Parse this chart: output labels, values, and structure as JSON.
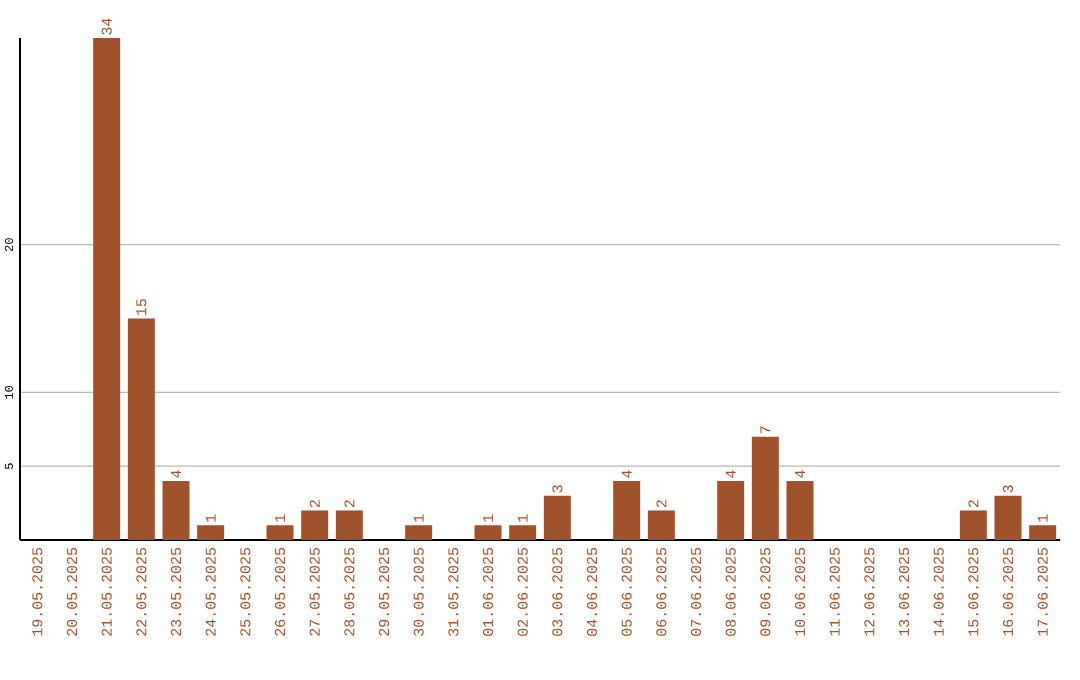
{
  "chart_data": {
    "type": "bar",
    "categories": [
      "19.05.2025",
      "20.05.2025",
      "21.05.2025",
      "22.05.2025",
      "23.05.2025",
      "24.05.2025",
      "25.05.2025",
      "26.05.2025",
      "27.05.2025",
      "28.05.2025",
      "29.05.2025",
      "30.05.2025",
      "31.05.2025",
      "01.06.2025",
      "02.06.2025",
      "03.06.2025",
      "04.06.2025",
      "05.06.2025",
      "06.06.2025",
      "07.06.2025",
      "08.06.2025",
      "09.06.2025",
      "10.06.2025",
      "11.06.2025",
      "12.06.2025",
      "13.06.2025",
      "14.06.2025",
      "15.06.2025",
      "16.06.2025",
      "17.06.2025"
    ],
    "values": [
      0,
      0,
      34,
      15,
      4,
      1,
      0,
      1,
      2,
      2,
      0,
      1,
      0,
      1,
      1,
      3,
      0,
      4,
      2,
      0,
      4,
      7,
      4,
      0,
      0,
      0,
      0,
      2,
      3,
      1
    ],
    "value_labels": [
      null,
      null,
      "34",
      "15",
      "4",
      "1",
      null,
      "1",
      "2",
      "2",
      null,
      "1",
      null,
      "1",
      "1",
      "3",
      null,
      "4",
      "2",
      null,
      "4",
      "7",
      "4",
      null,
      null,
      null,
      null,
      "2",
      "3",
      "1"
    ],
    "color": "#a0522d",
    "ylim": [
      0,
      34
    ],
    "yticks": [
      5,
      10,
      20
    ],
    "grid": "y"
  }
}
